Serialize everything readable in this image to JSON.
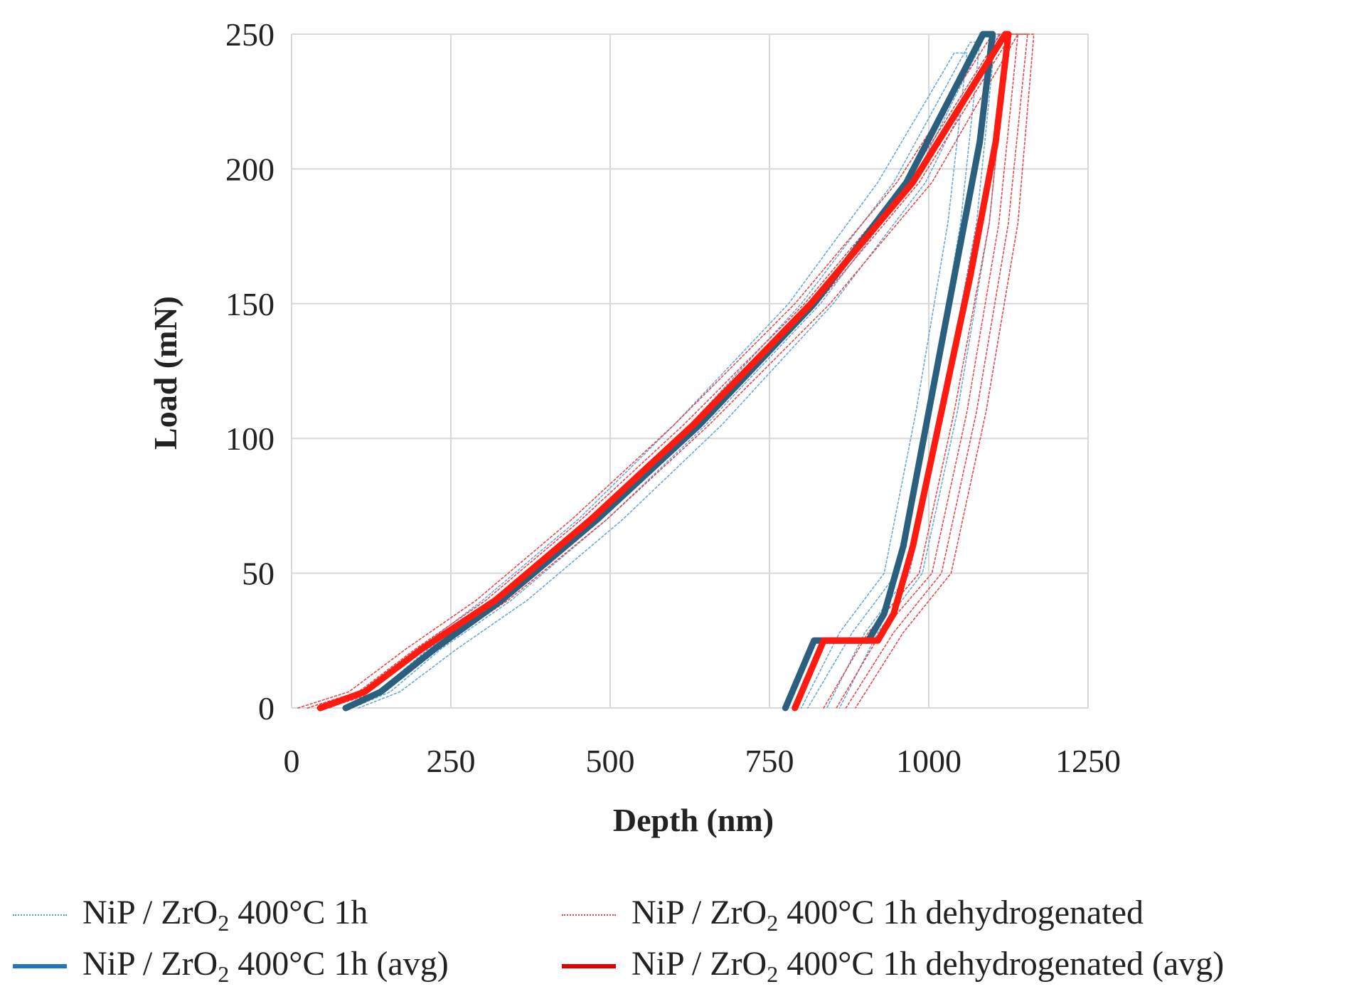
{
  "chart_data": {
    "type": "line",
    "xlabel": "Depth (nm)",
    "ylabel": "Load (mN)",
    "xlim": [
      0,
      1250
    ],
    "ylim": [
      0,
      250
    ],
    "x_ticks": [
      "0",
      "250",
      "500",
      "750",
      "1000",
      "1250"
    ],
    "y_ticks": [
      "0",
      "50",
      "100",
      "150",
      "200",
      "250"
    ],
    "grid": true,
    "legend_position": "bottom",
    "colors": {
      "blue_trial": "#6aa8d8",
      "blue_avg": "#2a5f7e",
      "red_trial": "#e8484c",
      "red_avg": "#ff1a10",
      "grid": "#d9d9d9"
    },
    "legend": [
      {
        "pre": "NiP / ZrO",
        "sub": "2",
        "post": " 400°C 1h",
        "style": "dotted",
        "color": "#5b9bd5"
      },
      {
        "pre": "NiP / ZrO",
        "sub": "2",
        "post": " 400°C 1h dehydrogenated",
        "style": "dotted",
        "color": "#e04040"
      },
      {
        "pre": "NiP / ZrO",
        "sub": "2",
        "post": " 400°C 1h  (avg)",
        "style": "solid",
        "color": "#1f77c4"
      },
      {
        "pre": "NiP / ZrO",
        "sub": "2",
        "post": " 400°C 1h dehydrogenated (avg)",
        "style": "solid",
        "color": "#e00000"
      }
    ],
    "series": [
      {
        "name": "NiP / ZrO2 400°C 1h",
        "kind": "trial",
        "group": "blue",
        "x": [
          60,
          120,
          200,
          300,
          450,
          600,
          780,
          920,
          1040,
          1060,
          1030,
          980,
          930,
          860,
          860,
          800
        ],
        "y": [
          0,
          6,
          22,
          40,
          70,
          105,
          150,
          195,
          243,
          243,
          180,
          110,
          50,
          28,
          28,
          0
        ]
      },
      {
        "name": "NiP / ZrO2 400°C 1h",
        "kind": "trial",
        "group": "blue",
        "x": [
          80,
          135,
          215,
          320,
          470,
          625,
          800,
          945,
          1065,
          1080,
          1050,
          1000,
          950,
          880,
          880,
          810
        ],
        "y": [
          0,
          6,
          22,
          40,
          70,
          105,
          150,
          195,
          247,
          247,
          180,
          110,
          50,
          28,
          28,
          0
        ]
      },
      {
        "name": "NiP / ZrO2 400°C 1h",
        "kind": "trial",
        "group": "blue",
        "x": [
          95,
          155,
          235,
          345,
          495,
          650,
          830,
          975,
          1090,
          1105,
          1075,
          1020,
          970,
          900,
          900,
          840
        ],
        "y": [
          0,
          6,
          22,
          40,
          70,
          105,
          150,
          195,
          250,
          250,
          180,
          110,
          50,
          28,
          28,
          0
        ]
      },
      {
        "name": "NiP / ZrO2 400°C 1h",
        "kind": "trial",
        "group": "blue",
        "x": [
          105,
          170,
          260,
          370,
          520,
          675,
          850,
          995,
          1110,
          1125,
          1095,
          1045,
          990,
          920,
          920,
          860
        ],
        "y": [
          0,
          6,
          22,
          40,
          70,
          105,
          150,
          195,
          250,
          250,
          180,
          110,
          50,
          28,
          28,
          0
        ]
      },
      {
        "name": "NiP / ZrO2 400°C 1h dehydrogenated",
        "kind": "trial",
        "group": "red",
        "x": [
          10,
          90,
          180,
          290,
          440,
          600,
          790,
          950,
          1100,
          1125,
          1095,
          1040,
          985,
          905,
          905,
          835
        ],
        "y": [
          0,
          6,
          22,
          40,
          70,
          105,
          150,
          195,
          250,
          250,
          180,
          110,
          50,
          28,
          28,
          0
        ]
      },
      {
        "name": "NiP / ZrO2 400°C 1h dehydrogenated",
        "kind": "trial",
        "group": "red",
        "x": [
          25,
          105,
          195,
          305,
          455,
          615,
          805,
          965,
          1112,
          1140,
          1110,
          1060,
          1005,
          925,
          925,
          855
        ],
        "y": [
          0,
          6,
          22,
          40,
          70,
          105,
          150,
          195,
          250,
          250,
          180,
          110,
          50,
          28,
          28,
          0
        ]
      },
      {
        "name": "NiP / ZrO2 400°C 1h dehydrogenated",
        "kind": "trial",
        "group": "red",
        "x": [
          40,
          120,
          210,
          320,
          475,
          635,
          825,
          985,
          1130,
          1155,
          1125,
          1075,
          1020,
          945,
          945,
          870
        ],
        "y": [
          0,
          6,
          22,
          40,
          70,
          105,
          150,
          195,
          250,
          250,
          180,
          110,
          50,
          28,
          28,
          0
        ]
      },
      {
        "name": "NiP / ZrO2 400°C 1h dehydrogenated",
        "kind": "trial",
        "group": "red",
        "x": [
          55,
          135,
          225,
          340,
          495,
          655,
          845,
          1005,
          1140,
          1165,
          1140,
          1090,
          1035,
          960,
          960,
          885
        ],
        "y": [
          0,
          6,
          22,
          40,
          70,
          105,
          150,
          195,
          250,
          250,
          180,
          110,
          50,
          28,
          28,
          0
        ]
      },
      {
        "name": "NiP / ZrO2 400°C 1h  (avg)",
        "kind": "avg",
        "group": "blue",
        "x": [
          85,
          140,
          225,
          330,
          480,
          640,
          820,
          965,
          1085,
          1100,
          1080,
          1040,
          1000,
          960,
          930,
          905,
          820,
          775
        ],
        "y": [
          0,
          6,
          22,
          40,
          70,
          105,
          150,
          195,
          250,
          250,
          210,
          160,
          110,
          60,
          35,
          25,
          25,
          0
        ]
      },
      {
        "name": "NiP / ZrO2 400°C 1h dehydrogenated (avg)",
        "kind": "avg",
        "group": "red",
        "x": [
          45,
          115,
          205,
          320,
          470,
          630,
          815,
          975,
          1120,
          1125,
          1105,
          1065,
          1020,
          975,
          945,
          920,
          835,
          790
        ],
        "y": [
          0,
          6,
          22,
          40,
          70,
          105,
          150,
          195,
          250,
          250,
          210,
          160,
          110,
          60,
          35,
          25,
          25,
          0
        ]
      }
    ]
  }
}
